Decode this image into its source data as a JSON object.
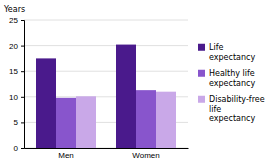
{
  "chart_data": {
    "type": "bar",
    "ylabel": "Years",
    "categories": [
      "Men",
      "Women"
    ],
    "series": [
      {
        "name": "Life\nexpectancy",
        "color": "#4a1a8c",
        "values": [
          17.5,
          20.2
        ]
      },
      {
        "name": "Healthy life\nexpectancy",
        "color": "#8855cc",
        "values": [
          9.8,
          11.3
        ]
      },
      {
        "name": "Disability-free\nlife\nexpectancy",
        "color": "#c9a8e8",
        "values": [
          10.1,
          11.0
        ]
      }
    ],
    "ylim": [
      0,
      25
    ],
    "yticks": [
      0,
      5,
      10,
      15,
      20,
      25
    ],
    "grid": true,
    "legend": "right"
  }
}
